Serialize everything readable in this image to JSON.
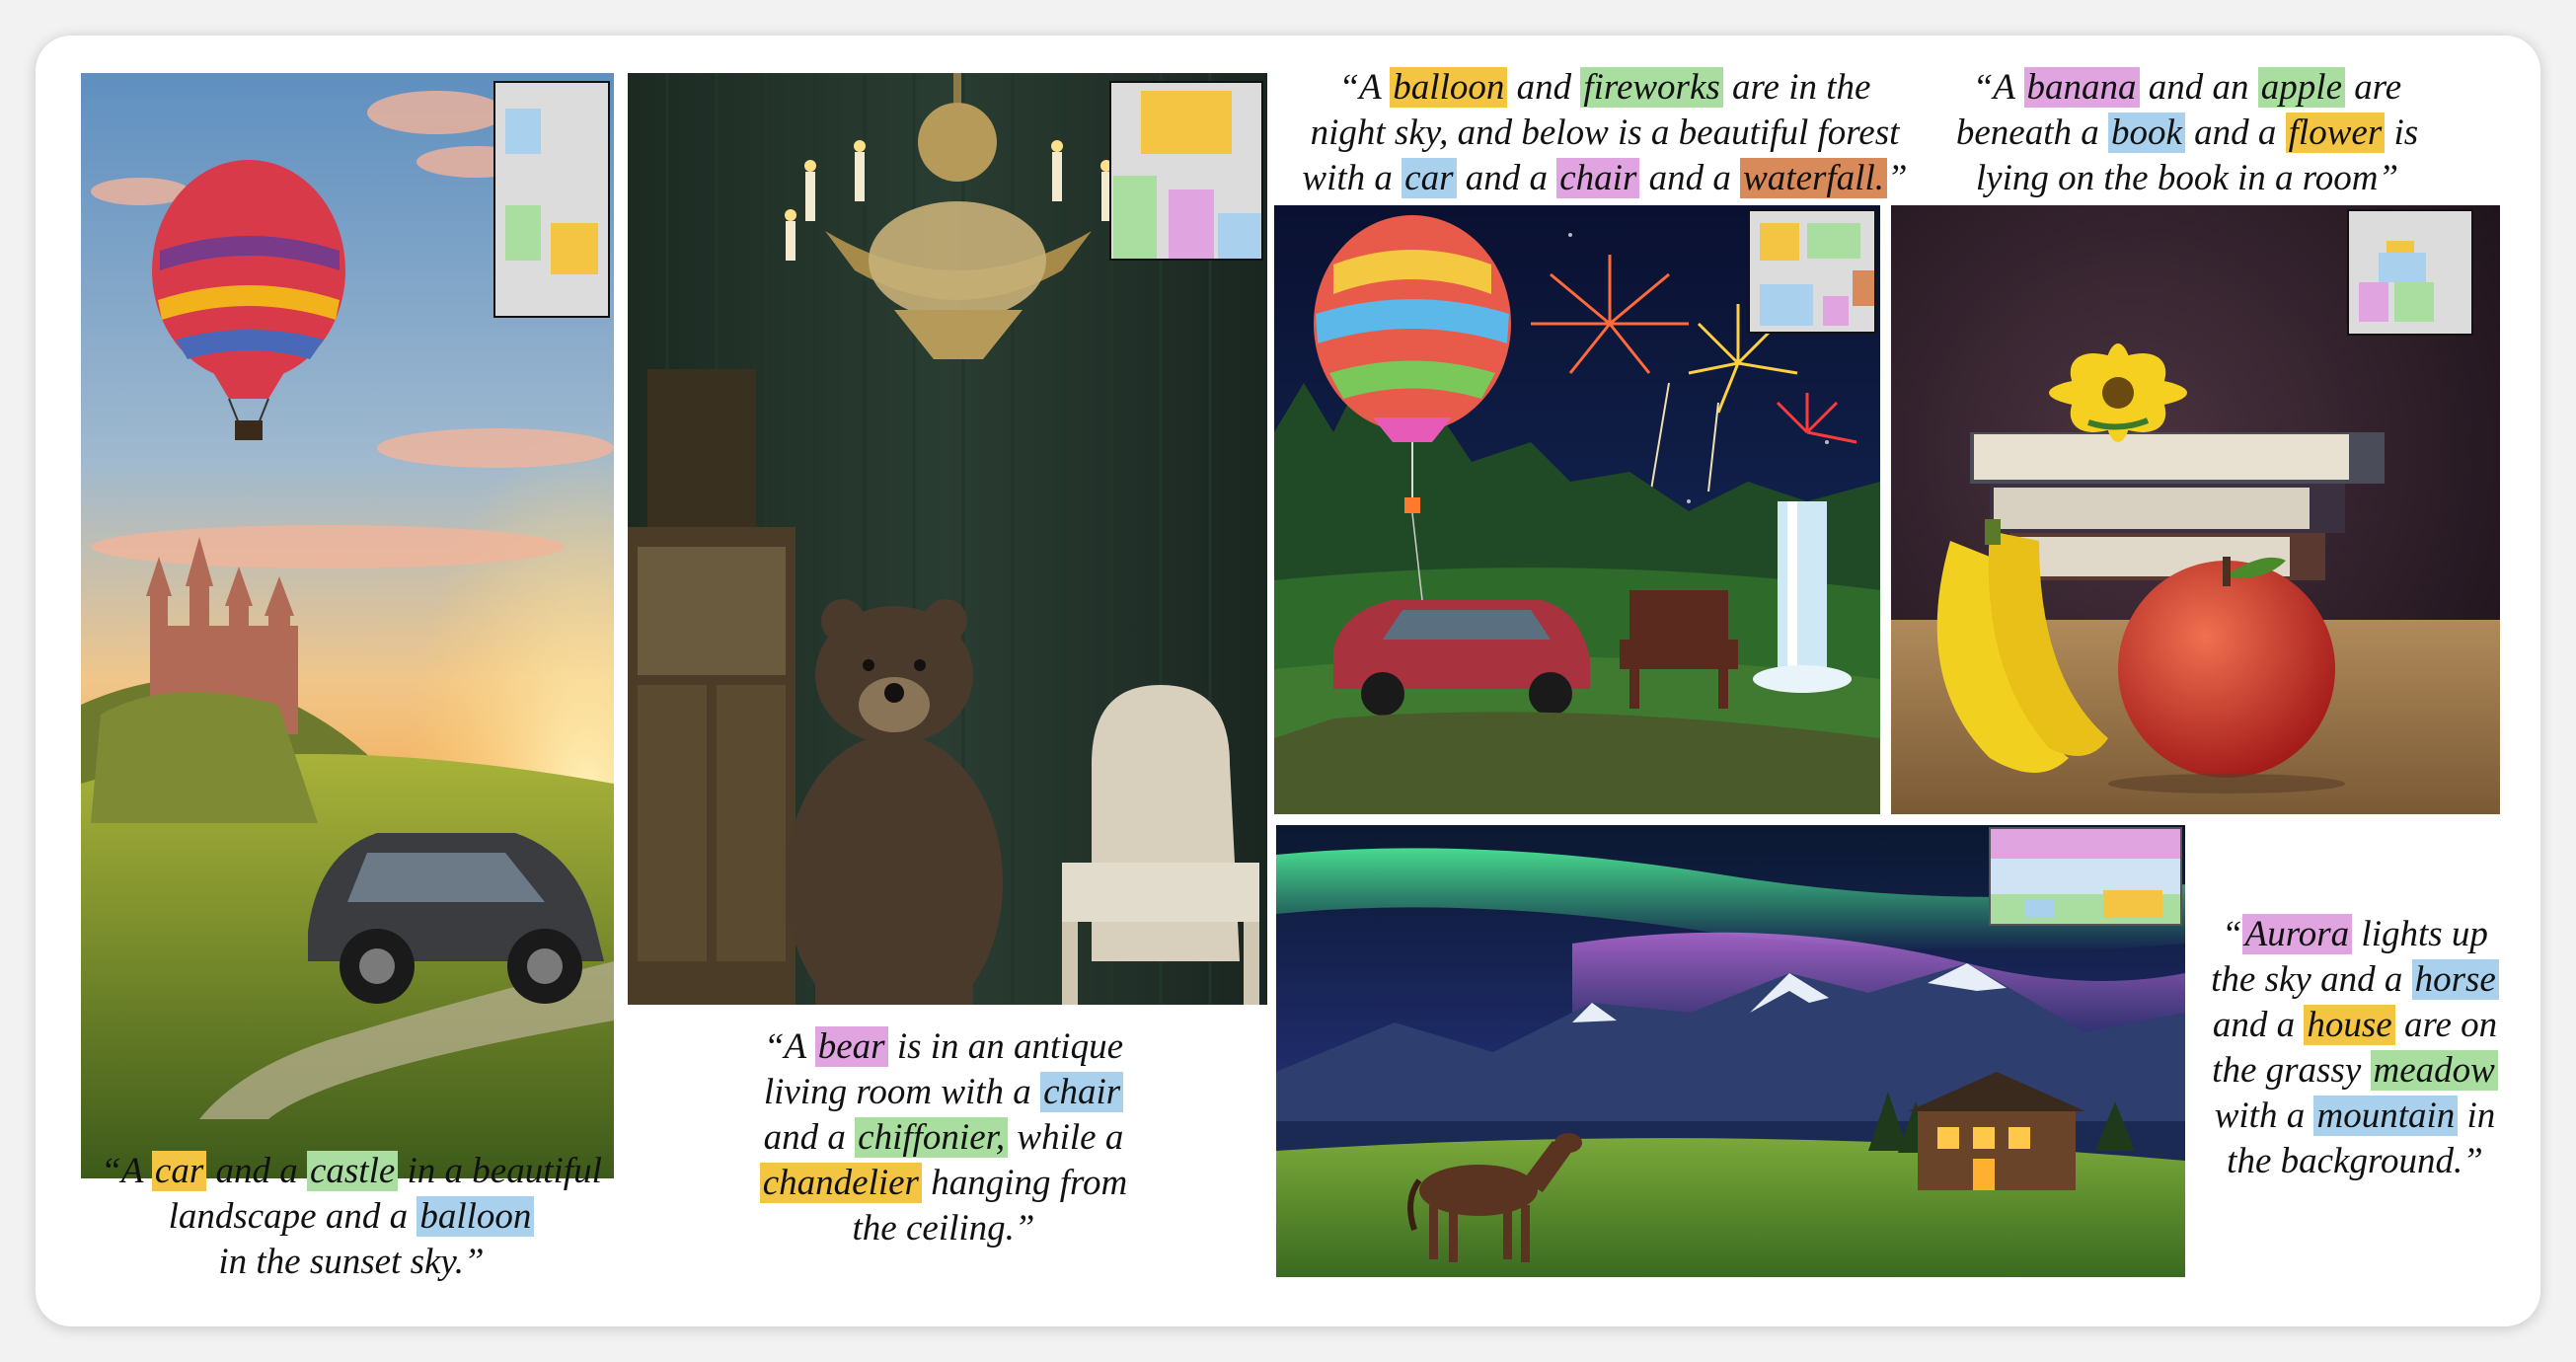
{
  "colors": {
    "yellow": "#f4c542",
    "green": "#a9dea0",
    "blue": "#a9d1ee",
    "pink": "#e0a5e0",
    "orange": "#d98a5a",
    "layout_bg": "#dcdcdc"
  },
  "examples": [
    {
      "id": "car-castle-balloon",
      "image_subject": "hot air balloon over a castle and a car at sunset",
      "caption_lines": [
        [
          {
            "t": "“A "
          },
          {
            "t": "car",
            "c": "yellow"
          },
          {
            "t": " and a "
          },
          {
            "t": "castle",
            "c": "green"
          },
          {
            "t": " in a beautiful"
          }
        ],
        [
          {
            "t": "landscape and a "
          },
          {
            "t": "balloon",
            "c": "blue"
          }
        ],
        [
          {
            "t": "in the sunset sky.”"
          }
        ]
      ]
    },
    {
      "id": "bear-chair-chiffonier-chandelier",
      "image_subject": "bear in an antique living room with a chair, chiffonier and chandelier",
      "caption_lines": [
        [
          {
            "t": "“A "
          },
          {
            "t": "bear",
            "c": "pink"
          },
          {
            "t": " is in an antique"
          }
        ],
        [
          {
            "t": "living room with a "
          },
          {
            "t": "chair",
            "c": "blue"
          }
        ],
        [
          {
            "t": "and a "
          },
          {
            "t": "chiffonier,",
            "c": "green"
          },
          {
            "t": " while a"
          }
        ],
        [
          {
            "t": "chandelier",
            "c": "yellow"
          },
          {
            "t": " hanging from"
          }
        ],
        [
          {
            "t": "the ceiling.”"
          }
        ]
      ]
    },
    {
      "id": "balloon-fireworks-forest",
      "image_subject": "balloon and fireworks in the night sky above a forest with a car, chair and waterfall",
      "caption_lines": [
        [
          {
            "t": "“A "
          },
          {
            "t": "balloon",
            "c": "yellow"
          },
          {
            "t": " and "
          },
          {
            "t": "fireworks",
            "c": "green"
          },
          {
            "t": " are in the"
          }
        ],
        [
          {
            "t": "night sky, and below is a beautiful forest"
          }
        ],
        [
          {
            "t": "with a "
          },
          {
            "t": "car",
            "c": "blue"
          },
          {
            "t": " and a "
          },
          {
            "t": "chair",
            "c": "pink"
          },
          {
            "t": " and a "
          },
          {
            "t": "waterfall.",
            "c": "orange"
          },
          {
            "t": "”"
          }
        ]
      ]
    },
    {
      "id": "banana-apple-book-flower",
      "image_subject": "banana and apple beneath books with a flower on top",
      "caption_lines": [
        [
          {
            "t": "“A "
          },
          {
            "t": "banana",
            "c": "pink"
          },
          {
            "t": " and an "
          },
          {
            "t": "apple",
            "c": "green"
          },
          {
            "t": " are"
          }
        ],
        [
          {
            "t": "beneath a "
          },
          {
            "t": "book",
            "c": "blue"
          },
          {
            "t": " and a "
          },
          {
            "t": "flower",
            "c": "yellow"
          },
          {
            "t": " is"
          }
        ],
        [
          {
            "t": "lying on the book in a room”"
          }
        ]
      ]
    },
    {
      "id": "aurora-horse-house",
      "image_subject": "aurora over mountains with a horse and a house on a meadow",
      "caption_lines": [
        [
          {
            "t": "“"
          },
          {
            "t": "Aurora",
            "c": "pink"
          },
          {
            "t": " lights up"
          }
        ],
        [
          {
            "t": "the sky and a "
          },
          {
            "t": "horse",
            "c": "blue"
          }
        ],
        [
          {
            "t": "and a "
          },
          {
            "t": "house",
            "c": "yellow"
          },
          {
            "t": " are on"
          }
        ],
        [
          {
            "t": "the grassy "
          },
          {
            "t": "meadow",
            "c": "green"
          }
        ],
        [
          {
            "t": "with a "
          },
          {
            "t": "mountain",
            "c": "blue"
          },
          {
            "t": " in"
          }
        ],
        [
          {
            "t": "the background.”"
          }
        ]
      ]
    }
  ]
}
